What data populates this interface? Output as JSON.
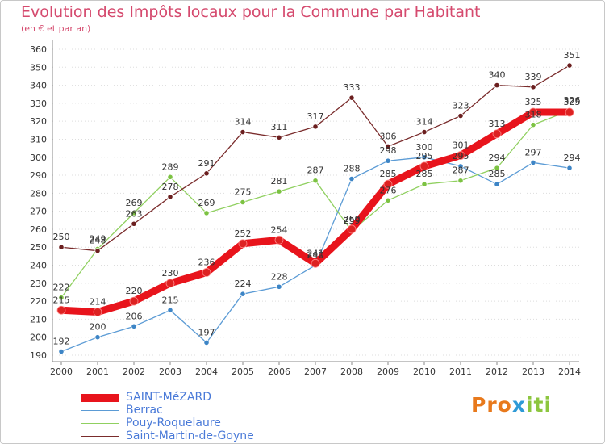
{
  "title": "Evolution des Impôts locaux pour la Commune par Habitant",
  "subtitle": "(en € et par an)",
  "logo": [
    "Pro",
    "x",
    "iti"
  ],
  "colors": {
    "title": "#d54a6e",
    "legend_text": "#4a7ad8",
    "axis": "#888888",
    "grid": "#dddddd"
  },
  "chart_data": {
    "type": "line",
    "x": [
      2000,
      2001,
      2002,
      2003,
      2004,
      2005,
      2006,
      2007,
      2008,
      2009,
      2010,
      2011,
      2012,
      2013,
      2014
    ],
    "ylim": [
      190,
      360
    ],
    "yticks": [
      190,
      200,
      210,
      220,
      230,
      240,
      250,
      260,
      270,
      280,
      290,
      300,
      310,
      320,
      330,
      340,
      350,
      360
    ],
    "grid": "horizontal dotted",
    "legend_position": "bottom-left",
    "series": [
      {
        "name": "SAINT-MéZARD",
        "values": [
          215,
          214,
          220,
          230,
          236,
          252,
          254,
          241,
          260,
          285,
          295,
          301,
          313,
          325,
          325
        ],
        "color": "#e8141c",
        "marker_color": "#dd2222",
        "bold": true
      },
      {
        "name": "Berrac",
        "values": [
          192,
          200,
          206,
          215,
          197,
          224,
          228,
          240,
          288,
          298,
          300,
          295,
          285,
          297,
          294
        ],
        "color": "#5b9bd5",
        "marker_color": "#3d85c6",
        "bold": false
      },
      {
        "name": "Pouy-Roquelaure",
        "values": [
          222,
          249,
          269,
          289,
          269,
          275,
          281,
          287,
          259,
          276,
          285,
          287,
          294,
          318,
          326
        ],
        "color": "#90d060",
        "marker_color": "#7cc242",
        "bold": false
      },
      {
        "name": "Saint-Martin-de-Goyne",
        "values": [
          250,
          248,
          263,
          278,
          291,
          314,
          311,
          317,
          333,
          306,
          314,
          323,
          340,
          339,
          351
        ],
        "color": "#7a2c2c",
        "marker_color": "#6b1f1f",
        "bold": false
      }
    ]
  }
}
